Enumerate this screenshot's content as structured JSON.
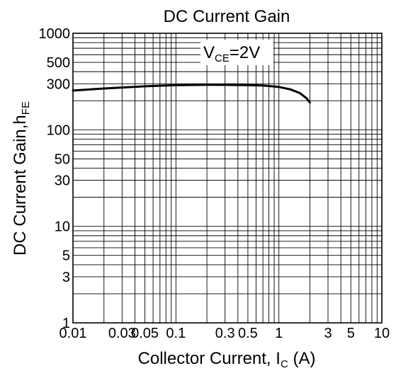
{
  "chart_data": {
    "type": "line",
    "title": "DC Current Gain",
    "xlabel": {
      "text": "Collector Current, I",
      "sub": "C",
      "tail": " (A)"
    },
    "ylabel": {
      "text": "DC Current Gain,h",
      "sub": "FE"
    },
    "annotation": {
      "text": "V",
      "sub": "CE",
      "tail": "=2V"
    },
    "x_scale": "log",
    "y_scale": "log",
    "xlim": [
      0.01,
      10
    ],
    "ylim": [
      1,
      1000
    ],
    "grid": true,
    "x_ticks": [
      {
        "value": 0.01,
        "label": "0.01"
      },
      {
        "value": 0.03,
        "label": "0.03"
      },
      {
        "value": 0.05,
        "label": "0.05"
      },
      {
        "value": 0.1,
        "label": "0.1"
      },
      {
        "value": 0.3,
        "label": "0.3"
      },
      {
        "value": 0.5,
        "label": "0.5"
      },
      {
        "value": 1,
        "label": "1"
      },
      {
        "value": 3,
        "label": "3"
      },
      {
        "value": 5,
        "label": "5"
      },
      {
        "value": 10,
        "label": "10"
      }
    ],
    "y_ticks": [
      {
        "value": 1,
        "label": "1"
      },
      {
        "value": 3,
        "label": "3"
      },
      {
        "value": 5,
        "label": "5"
      },
      {
        "value": 10,
        "label": "10"
      },
      {
        "value": 30,
        "label": "30"
      },
      {
        "value": 50,
        "label": "50"
      },
      {
        "value": 100,
        "label": "100"
      },
      {
        "value": 300,
        "label": "300"
      },
      {
        "value": 500,
        "label": "500"
      },
      {
        "value": 1000,
        "label": "1000"
      }
    ],
    "series": [
      {
        "color": "#000000",
        "x": [
          0.01,
          0.02,
          0.05,
          0.1,
          0.2,
          0.3,
          0.5,
          0.7,
          1.0,
          1.3,
          1.6,
          1.85,
          2.0
        ],
        "y": [
          255,
          268,
          282,
          290,
          293,
          292,
          290,
          288,
          278,
          262,
          240,
          213,
          192
        ]
      }
    ]
  }
}
